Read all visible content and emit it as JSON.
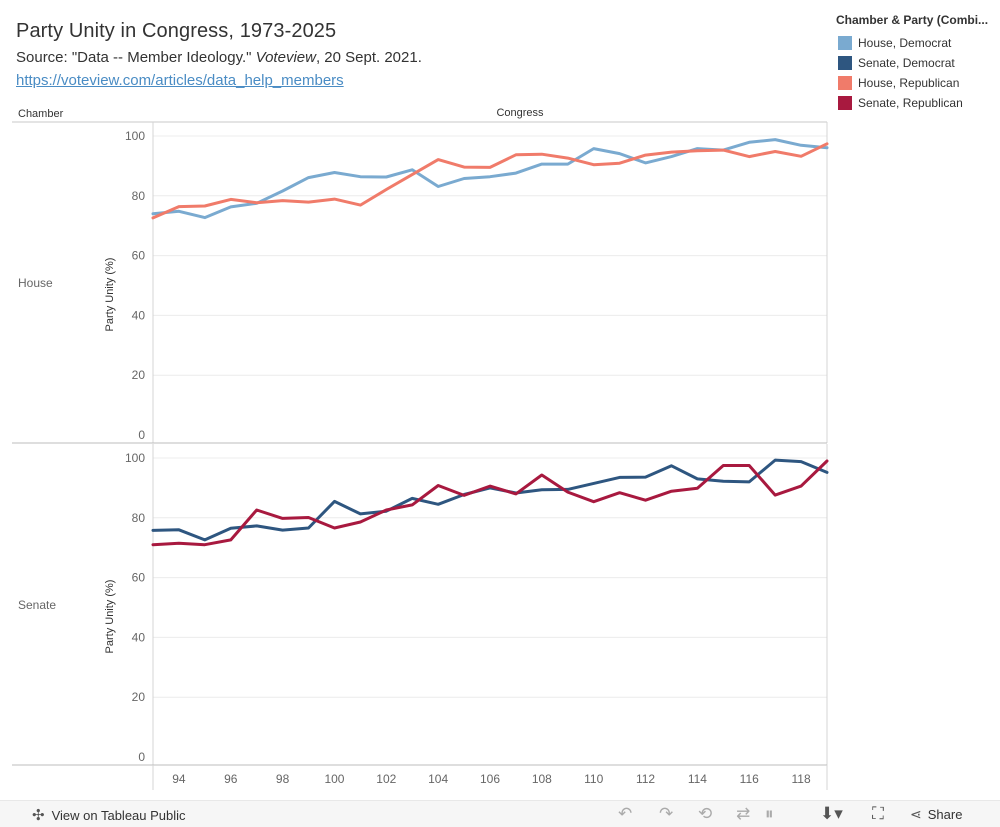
{
  "header": {
    "title": "Party Unity in Congress, 1973-2025",
    "source_prefix": "Source: \"Data -- Member Ideology.\" ",
    "source_pub": "Voteview",
    "source_date": ", 20 Sept. 2021.",
    "link": "https://voteview.com/articles/data_help_members"
  },
  "legend": {
    "title": "Chamber & Party (Combi...",
    "items": [
      {
        "label": "House, Democrat",
        "color": "#7aaad0"
      },
      {
        "label": "Senate, Democrat",
        "color": "#2e5680"
      },
      {
        "label": "House, Republican",
        "color": "#f07b6a"
      },
      {
        "label": "Senate, Republican",
        "color": "#a8193f"
      }
    ]
  },
  "toolbar": {
    "view_label": "View on Tableau Public",
    "share_label": "Share"
  },
  "chart_data": {
    "type": "line",
    "column_header_row": "Chamber",
    "column_header_x": "Congress",
    "ylabel": "Party Unity (%)",
    "ylim": [
      0,
      100
    ],
    "yticks": [
      0,
      20,
      40,
      60,
      80,
      100
    ],
    "xlim": [
      93,
      119
    ],
    "xticks": [
      94,
      96,
      98,
      100,
      102,
      104,
      106,
      108,
      110,
      112,
      114,
      116,
      118
    ],
    "x": [
      93,
      94,
      95,
      96,
      97,
      98,
      99,
      100,
      101,
      102,
      103,
      104,
      105,
      106,
      107,
      108,
      109,
      110,
      111,
      112,
      113,
      114,
      115,
      116,
      117,
      118,
      119
    ],
    "panels": [
      {
        "label": "House",
        "series": [
          {
            "name": "House, Democrat",
            "color": "#7aaad0",
            "values": [
              74.0,
              74.8,
              72.7,
              76.3,
              77.5,
              81.6,
              86.1,
              87.8,
              86.4,
              86.3,
              88.7,
              83.1,
              85.8,
              86.4,
              87.6,
              90.6,
              90.6,
              95.8,
              94.1,
              91.0,
              93.1,
              95.8,
              95.3,
              97.9,
              98.8,
              96.9,
              96.1
            ]
          },
          {
            "name": "House, Republican",
            "color": "#f07b6a",
            "values": [
              72.6,
              76.4,
              76.6,
              78.8,
              77.7,
              78.4,
              77.9,
              78.9,
              76.9,
              82.1,
              87.1,
              92.1,
              89.6,
              89.5,
              93.7,
              93.9,
              92.6,
              90.4,
              90.9,
              93.6,
              94.6,
              95.1,
              95.3,
              93.1,
              94.8,
              93.2,
              97.4
            ]
          }
        ]
      },
      {
        "label": "Senate",
        "series": [
          {
            "name": "Senate, Democrat",
            "color": "#2e5680",
            "values": [
              75.8,
              76.0,
              72.6,
              76.5,
              77.3,
              75.9,
              76.6,
              85.5,
              81.3,
              82.2,
              86.5,
              84.5,
              87.8,
              90.0,
              88.3,
              89.4,
              89.5,
              91.5,
              93.5,
              93.6,
              97.4,
              93.0,
              92.2,
              92.0,
              99.3,
              98.8,
              95.2
            ]
          },
          {
            "name": "Senate, Republican",
            "color": "#a8193f",
            "values": [
              71.0,
              71.5,
              71.0,
              72.6,
              82.6,
              79.8,
              80.1,
              76.6,
              78.6,
              82.6,
              84.3,
              90.8,
              87.5,
              90.6,
              88.0,
              94.3,
              88.6,
              85.4,
              88.4,
              85.9,
              88.9,
              89.9,
              97.5,
              97.5,
              87.6,
              90.6,
              99.0
            ]
          }
        ]
      }
    ]
  }
}
